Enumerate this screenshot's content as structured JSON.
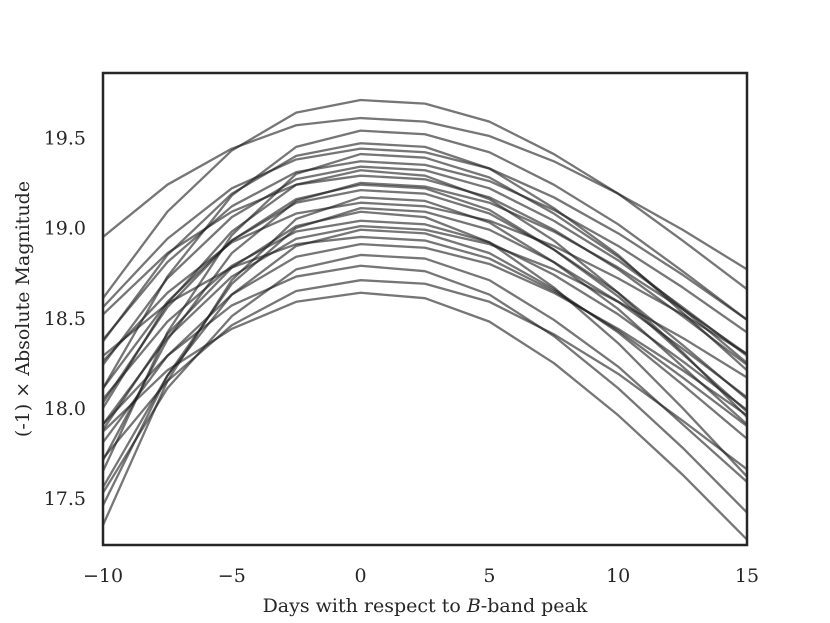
{
  "chart_data": {
    "type": "line",
    "ylabel": "(-1) × Absolute Magnitude",
    "xlabel_parts": [
      "Days with respect to ",
      "B",
      "-band peak"
    ],
    "x": [
      -10,
      -7.5,
      -5,
      -2.5,
      0,
      2.5,
      5,
      7.5,
      10,
      12.5,
      15
    ],
    "xlim": [
      -10,
      15
    ],
    "xticks": [
      {
        "value": -10,
        "label": "−10"
      },
      {
        "value": -5,
        "label": "−5"
      },
      0,
      5,
      10,
      15
    ],
    "ylim": [
      17.25,
      19.87
    ],
    "yticks": [
      17.5,
      {
        "value": 18,
        "label": "18.0"
      },
      18.5,
      {
        "value": 19,
        "label": "19.0"
      },
      19.5
    ],
    "color": "#1a1a1a",
    "line_alpha": 0.6,
    "grid": false,
    "series": [
      {
        "values": [
          18.62,
          19.1,
          19.44,
          19.65,
          19.72,
          19.7,
          19.6,
          19.42,
          19.2,
          18.94,
          18.67
        ]
      },
      {
        "values": [
          18.96,
          19.25,
          19.45,
          19.58,
          19.62,
          19.6,
          19.52,
          19.38,
          19.2,
          19.0,
          18.78
        ]
      },
      {
        "values": [
          18.12,
          18.74,
          19.19,
          19.46,
          19.55,
          19.53,
          19.43,
          19.25,
          19.03,
          18.77,
          18.5
        ]
      },
      {
        "values": [
          18.38,
          18.86,
          19.2,
          19.41,
          19.48,
          19.46,
          19.34,
          19.12,
          18.86,
          18.54,
          18.22
        ]
      },
      {
        "values": [
          17.66,
          18.43,
          18.97,
          19.31,
          19.42,
          19.4,
          19.29,
          19.09,
          18.85,
          18.56,
          18.26
        ]
      },
      {
        "values": [
          18.39,
          18.82,
          19.13,
          19.32,
          19.38,
          19.36,
          19.27,
          19.11,
          18.91,
          18.68,
          18.43
        ]
      },
      {
        "values": [
          18.01,
          18.59,
          18.99,
          19.25,
          19.33,
          19.3,
          19.17,
          18.94,
          18.65,
          18.32,
          17.96
        ]
      },
      {
        "values": [
          18.53,
          18.87,
          19.1,
          19.25,
          19.3,
          19.28,
          19.18,
          19.0,
          18.78,
          18.52,
          18.25
        ]
      },
      {
        "values": [
          17.72,
          18.39,
          18.87,
          19.16,
          19.26,
          19.24,
          19.15,
          18.99,
          18.79,
          18.56,
          18.31
        ]
      },
      {
        "values": [
          18.12,
          18.6,
          18.94,
          19.15,
          19.22,
          19.2,
          19.09,
          18.89,
          18.65,
          18.36,
          18.06
        ]
      },
      {
        "values": [
          17.36,
          18.16,
          18.72,
          19.06,
          19.18,
          19.16,
          19.04,
          18.82,
          18.56,
          18.24,
          17.92
        ]
      },
      {
        "values": [
          18.27,
          18.65,
          18.93,
          19.09,
          19.15,
          19.13,
          19.05,
          18.91,
          18.73,
          18.53,
          18.31
        ]
      },
      {
        "values": [
          17.89,
          18.42,
          18.79,
          19.02,
          19.1,
          19.07,
          18.93,
          18.68,
          18.37,
          18.01,
          17.63
        ]
      },
      {
        "values": [
          18.06,
          18.49,
          18.8,
          18.99,
          19.05,
          19.03,
          18.93,
          18.75,
          18.53,
          18.27,
          18.0
        ]
      },
      {
        "values": [
          17.57,
          18.19,
          18.64,
          18.91,
          19.0,
          18.98,
          18.87,
          18.67,
          18.43,
          18.14,
          17.84
        ]
      },
      {
        "values": [
          18.3,
          18.59,
          18.79,
          18.92,
          18.96,
          18.94,
          18.84,
          18.66,
          18.44,
          18.18,
          17.91
        ]
      },
      {
        "values": [
          17.82,
          18.3,
          18.64,
          18.85,
          18.92,
          18.9,
          18.81,
          18.65,
          18.45,
          18.22,
          17.97
        ]
      },
      {
        "values": [
          17.54,
          18.12,
          18.52,
          18.78,
          18.86,
          18.84,
          18.72,
          18.5,
          18.24,
          17.92,
          17.6
        ]
      },
      {
        "values": [
          17.92,
          18.3,
          18.58,
          18.74,
          18.8,
          18.77,
          18.64,
          18.41,
          18.12,
          17.79,
          17.43
        ]
      },
      {
        "values": [
          17.73,
          18.16,
          18.47,
          18.66,
          18.72,
          18.7,
          18.6,
          18.42,
          18.2,
          17.94,
          17.67
        ]
      },
      {
        "values": [
          17.88,
          18.22,
          18.45,
          18.6,
          18.65,
          18.62,
          18.49,
          18.26,
          17.97,
          17.64,
          17.28
        ]
      },
      {
        "values": [
          18.57,
          18.95,
          19.23,
          19.39,
          19.45,
          19.43,
          19.34,
          19.18,
          18.98,
          18.75,
          18.5
        ]
      },
      {
        "values": [
          18.25,
          18.73,
          19.07,
          19.28,
          19.35,
          19.33,
          19.23,
          19.05,
          18.83,
          18.57,
          18.3
        ]
      },
      {
        "values": [
          17.47,
          18.19,
          18.7,
          19.01,
          19.12,
          19.1,
          19.0,
          18.82,
          18.6,
          18.34,
          18.07
        ]
      },
      {
        "values": [
          18.04,
          18.57,
          18.94,
          19.17,
          19.25,
          19.23,
          19.11,
          18.89,
          18.63,
          18.31,
          17.99
        ]
      },
      {
        "values": [
          17.92,
          18.4,
          18.74,
          18.95,
          19.02,
          19.0,
          18.92,
          18.78,
          18.6,
          18.4,
          18.18
        ]
      }
    ]
  }
}
